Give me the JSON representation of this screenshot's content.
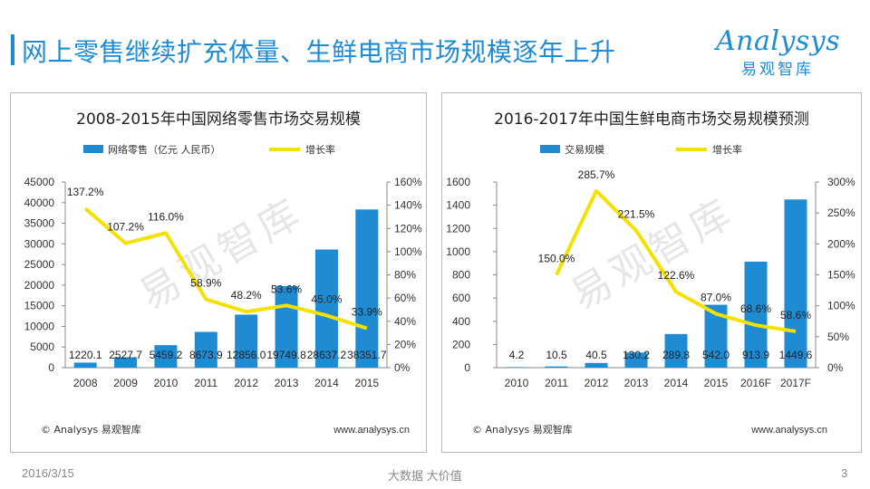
{
  "page": {
    "title": "网上零售继续扩充体量、生鲜电商市场规模逐年上升",
    "logo_text": "Analysys",
    "logo_sub": "易观智库",
    "footer_date": "2016/3/15",
    "footer_center": "大数据 大价值",
    "page_number": "3"
  },
  "panels": [
    {
      "footer_left": "© Analysys 易观智库",
      "footer_right": "www.analysys.cn",
      "watermark": "易观智库"
    },
    {
      "footer_left": "© Analysys 易观智库",
      "footer_right": "www.analysys.cn",
      "watermark": "易观智库"
    }
  ],
  "colors": {
    "bar": "#1f8bd2",
    "line": "#f5e100",
    "title": "#1f8bd2"
  },
  "chart_data": [
    {
      "type": "bar",
      "title": "2008-2015年中国网络零售市场交易规模",
      "legend_position": "top",
      "categories": [
        "2008",
        "2009",
        "2010",
        "2011",
        "2012",
        "2013",
        "2014",
        "2015"
      ],
      "series": [
        {
          "name": "网络零售（亿元 人民币）",
          "type": "bar",
          "axis": "left",
          "values": [
            1220.1,
            2527.7,
            5459.2,
            8673.9,
            12856.0,
            19749.8,
            28637.2,
            38351.7
          ],
          "labels": [
            "1220.1",
            "2527.7",
            "5459.2",
            "8673.9",
            "12856.0",
            "19749.8",
            "28637.2",
            "38351.7"
          ]
        },
        {
          "name": "增长率",
          "type": "line",
          "axis": "right",
          "values": [
            137.2,
            107.2,
            116.0,
            58.9,
            48.2,
            53.6,
            45.0,
            33.9
          ],
          "labels": [
            "137.2%",
            "107.2%",
            "116.0%",
            "58.9%",
            "48.2%",
            "53.6%",
            "45.0%",
            "33.9%"
          ]
        }
      ],
      "y_left": {
        "min": 0,
        "max": 45000,
        "ticks": [
          "0",
          "5000",
          "10000",
          "15000",
          "20000",
          "25000",
          "30000",
          "35000",
          "40000",
          "45000"
        ]
      },
      "y_right": {
        "min": 0,
        "max": 160,
        "ticks": [
          "0%",
          "20%",
          "40%",
          "60%",
          "80%",
          "100%",
          "120%",
          "140%",
          "160%"
        ]
      },
      "grid": false
    },
    {
      "type": "bar",
      "title": "2016-2017年中国生鲜电商市场交易规模预测",
      "legend_position": "top",
      "categories": [
        "2010",
        "2011",
        "2012",
        "2013",
        "2014",
        "2015",
        "2016F",
        "2017F"
      ],
      "series": [
        {
          "name": "交易规模",
          "type": "bar",
          "axis": "left",
          "values": [
            4.2,
            10.5,
            40.5,
            130.2,
            289.8,
            542.0,
            913.9,
            1449.6
          ],
          "labels": [
            "4.2",
            "10.5",
            "40.5",
            "130.2",
            "289.8",
            "542.0",
            "913.9",
            "1449.6"
          ]
        },
        {
          "name": "增长率",
          "type": "line",
          "axis": "right",
          "values": [
            null,
            150.0,
            285.7,
            221.5,
            122.6,
            87.0,
            68.6,
            58.6
          ],
          "labels": [
            "",
            "150.0%",
            "285.7%",
            "221.5%",
            "122.6%",
            "87.0%",
            "68.6%",
            "58.6%"
          ]
        }
      ],
      "y_left": {
        "min": 0,
        "max": 1600,
        "ticks": [
          "0",
          "200",
          "400",
          "600",
          "800",
          "1000",
          "1200",
          "1400",
          "1600"
        ]
      },
      "y_right": {
        "min": 0,
        "max": 300,
        "ticks": [
          "0%",
          "50%",
          "100%",
          "150%",
          "200%",
          "250%",
          "300%"
        ]
      },
      "grid": false
    }
  ]
}
